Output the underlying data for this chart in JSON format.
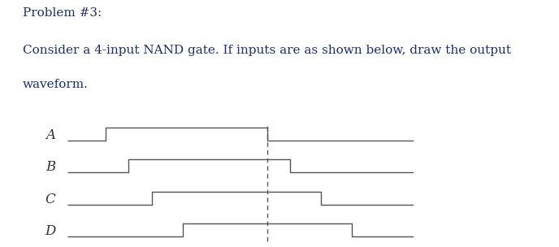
{
  "title_line1": "Problem #3:",
  "title_line2": "Consider a 4-input NAND gate. If inputs are as shown below, draw the output",
  "title_line3": "waveform.",
  "labels": [
    "A",
    "B",
    "C",
    "D"
  ],
  "background_color": "#ffffff",
  "line_color": "#555555",
  "text_color": "#1a2f6e",
  "dashed_line_x": 5.2,
  "waveforms": {
    "A": [
      0,
      0,
      1.0,
      0,
      1.0,
      1,
      5.2,
      1,
      5.2,
      0,
      9.0,
      0
    ],
    "B": [
      0,
      0,
      1.6,
      0,
      1.6,
      1,
      5.8,
      1,
      5.8,
      0,
      9.0,
      0
    ],
    "C": [
      0,
      0,
      2.2,
      0,
      2.2,
      1,
      6.6,
      1,
      6.6,
      0,
      9.0,
      0
    ],
    "D": [
      0,
      0,
      3.0,
      0,
      3.0,
      1,
      7.4,
      1,
      7.4,
      0,
      9.0,
      0
    ]
  },
  "figsize": [
    6.88,
    3.04
  ],
  "dpi": 100,
  "title_fontsize": 11,
  "body_fontsize": 11
}
